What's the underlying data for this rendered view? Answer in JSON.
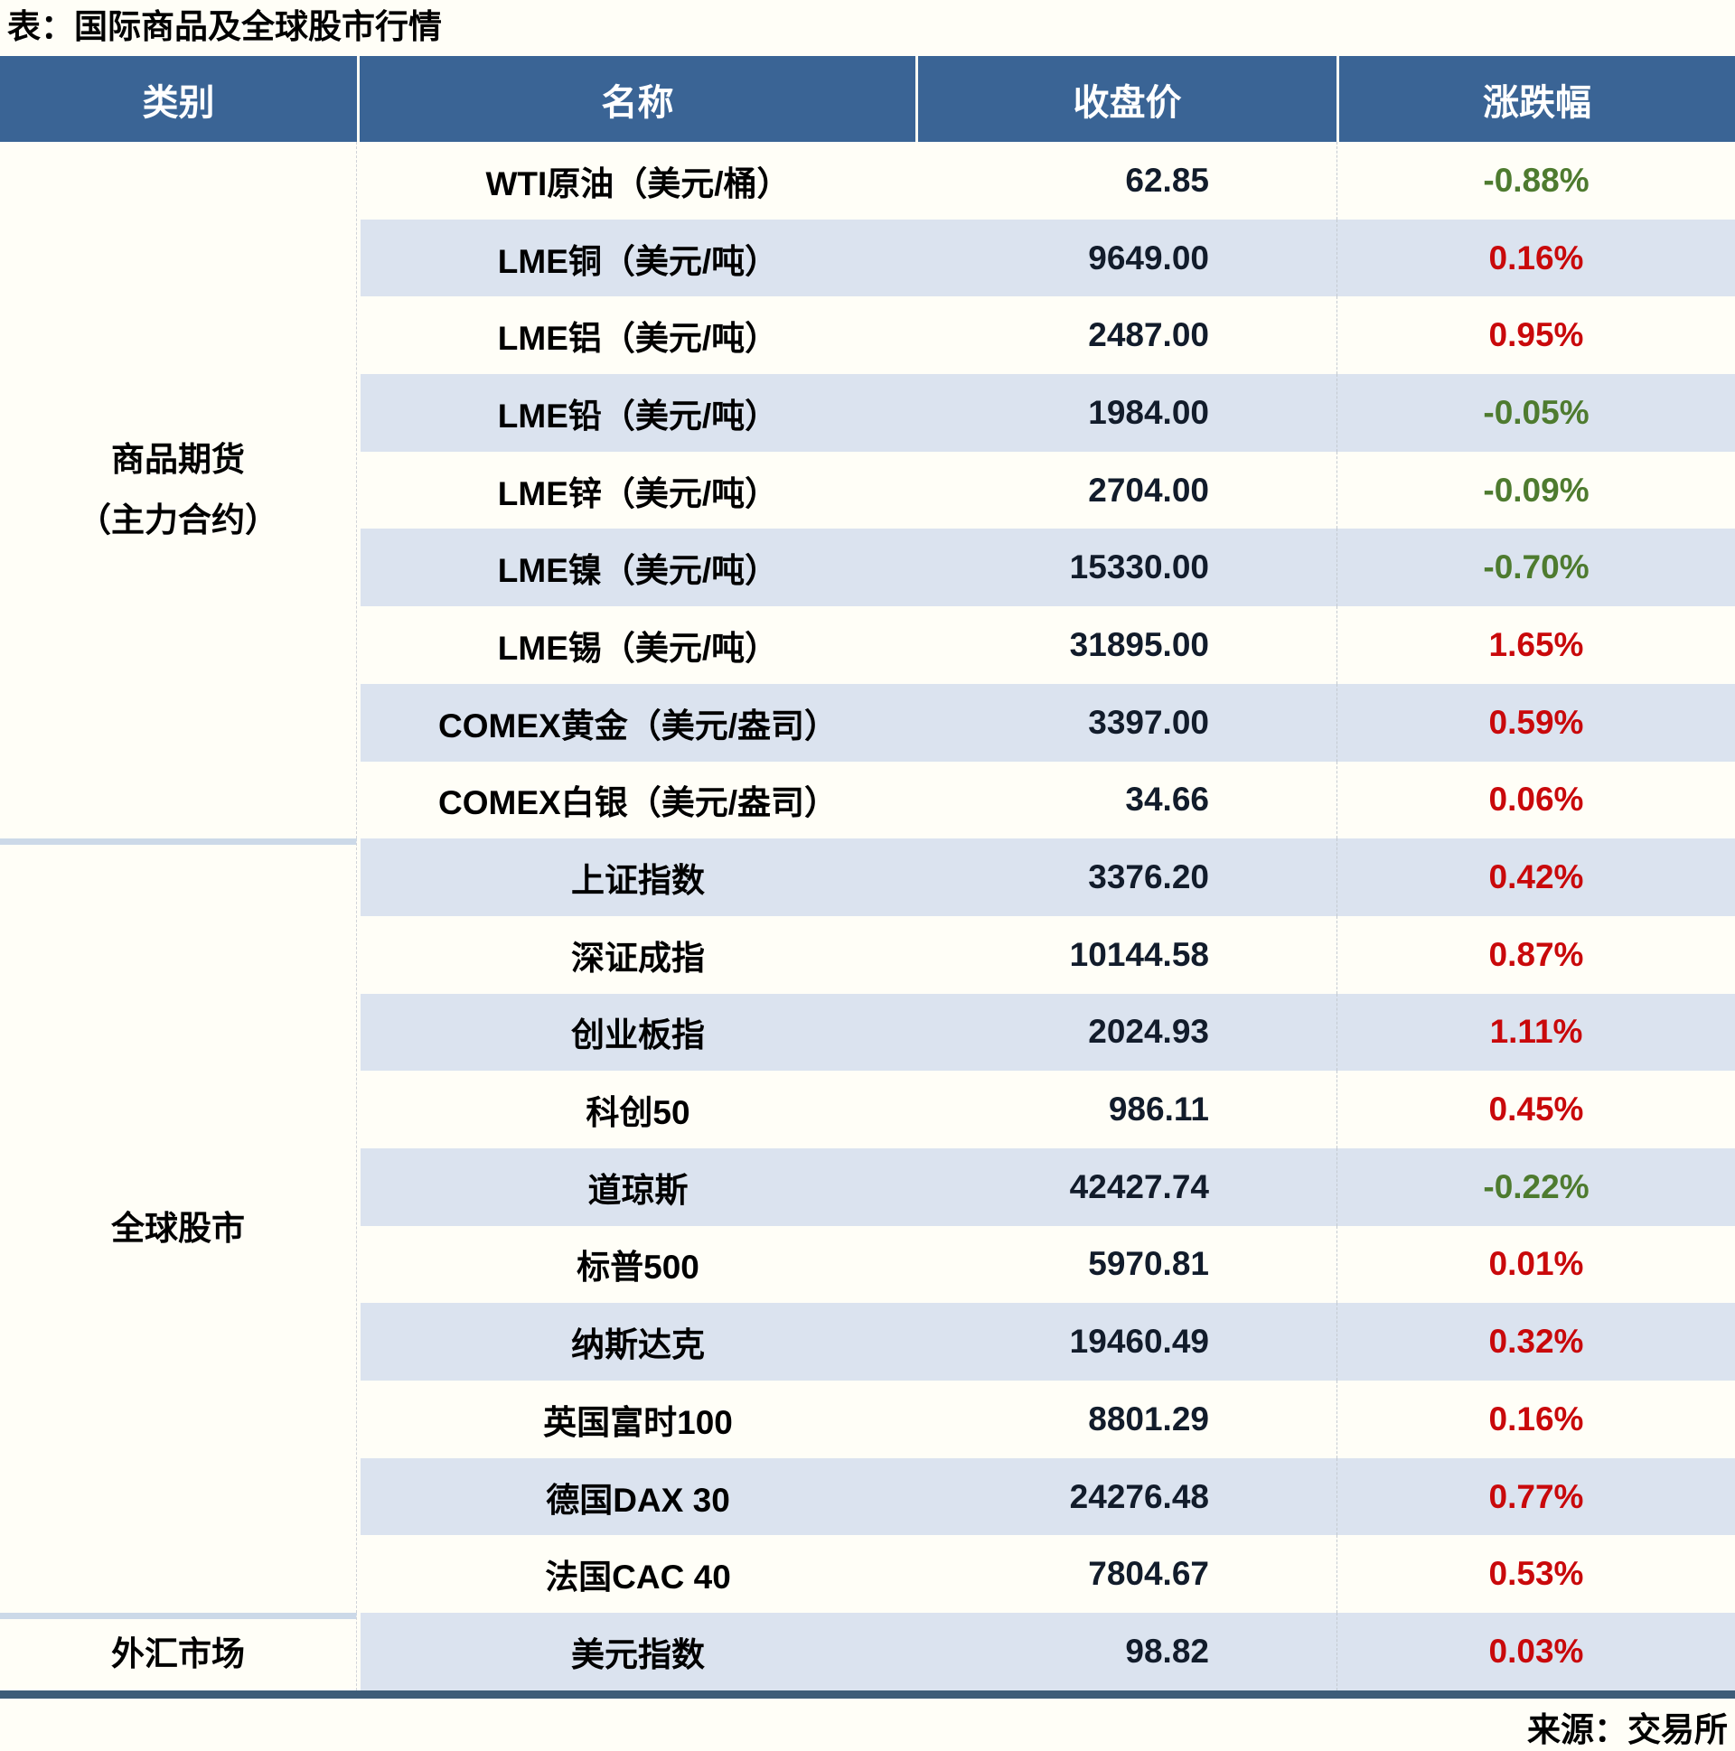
{
  "title": "表：国际商品及全球股市行情",
  "source": "来源：交易所",
  "colors": {
    "header_bg": "#3A6495",
    "stripe_blue": "#DBE3EF",
    "stripe_white": "#FFFEF7",
    "up_red": "#C9090B",
    "down_green": "#4E7B2F",
    "price_text": "#121C2B",
    "bottom_border": "#3D5C79",
    "group_separator": "#CCD9E8"
  },
  "table": {
    "headers": [
      "类别",
      "名称",
      "收盘价",
      "涨跌幅"
    ],
    "groups": [
      {
        "lines": [
          "商品期货",
          "（主力合约）"
        ],
        "span": 9
      },
      {
        "lines": [
          "全球股市"
        ],
        "span": 10
      },
      {
        "lines": [
          "外汇市场"
        ],
        "span": 1
      }
    ],
    "rows": [
      {
        "name": "WTI原油（美元/桶）",
        "close": "62.85",
        "change": "-0.88%",
        "direction": "down"
      },
      {
        "name": "LME铜（美元/吨）",
        "close": "9649.00",
        "change": "0.16%",
        "direction": "up"
      },
      {
        "name": "LME铝（美元/吨）",
        "close": "2487.00",
        "change": "0.95%",
        "direction": "up"
      },
      {
        "name": "LME铅（美元/吨）",
        "close": "1984.00",
        "change": "-0.05%",
        "direction": "down"
      },
      {
        "name": "LME锌（美元/吨）",
        "close": "2704.00",
        "change": "-0.09%",
        "direction": "down"
      },
      {
        "name": "LME镍（美元/吨）",
        "close": "15330.00",
        "change": "-0.70%",
        "direction": "down"
      },
      {
        "name": "LME锡（美元/吨）",
        "close": "31895.00",
        "change": "1.65%",
        "direction": "up"
      },
      {
        "name": "COMEX黄金（美元/盎司）",
        "close": "3397.00",
        "change": "0.59%",
        "direction": "up"
      },
      {
        "name": "COMEX白银（美元/盎司）",
        "close": "34.66",
        "change": "0.06%",
        "direction": "up"
      },
      {
        "name": "上证指数",
        "close": "3376.20",
        "change": "0.42%",
        "direction": "up"
      },
      {
        "name": "深证成指",
        "close": "10144.58",
        "change": "0.87%",
        "direction": "up"
      },
      {
        "name": "创业板指",
        "close": "2024.93",
        "change": "1.11%",
        "direction": "up"
      },
      {
        "name": "科创50",
        "close": "986.11",
        "change": "0.45%",
        "direction": "up"
      },
      {
        "name": "道琼斯",
        "close": "42427.74",
        "change": "-0.22%",
        "direction": "down"
      },
      {
        "name": "标普500",
        "close": "5970.81",
        "change": "0.01%",
        "direction": "up"
      },
      {
        "name": "纳斯达克",
        "close": "19460.49",
        "change": "0.32%",
        "direction": "up"
      },
      {
        "name": "英国富时100",
        "close": "8801.29",
        "change": "0.16%",
        "direction": "up"
      },
      {
        "name": "德国DAX 30",
        "close": "24276.48",
        "change": "0.77%",
        "direction": "up"
      },
      {
        "name": "法国CAC 40",
        "close": "7804.67",
        "change": "0.53%",
        "direction": "up"
      },
      {
        "name": "美元指数",
        "close": "98.82",
        "change": "0.03%",
        "direction": "up"
      }
    ]
  }
}
